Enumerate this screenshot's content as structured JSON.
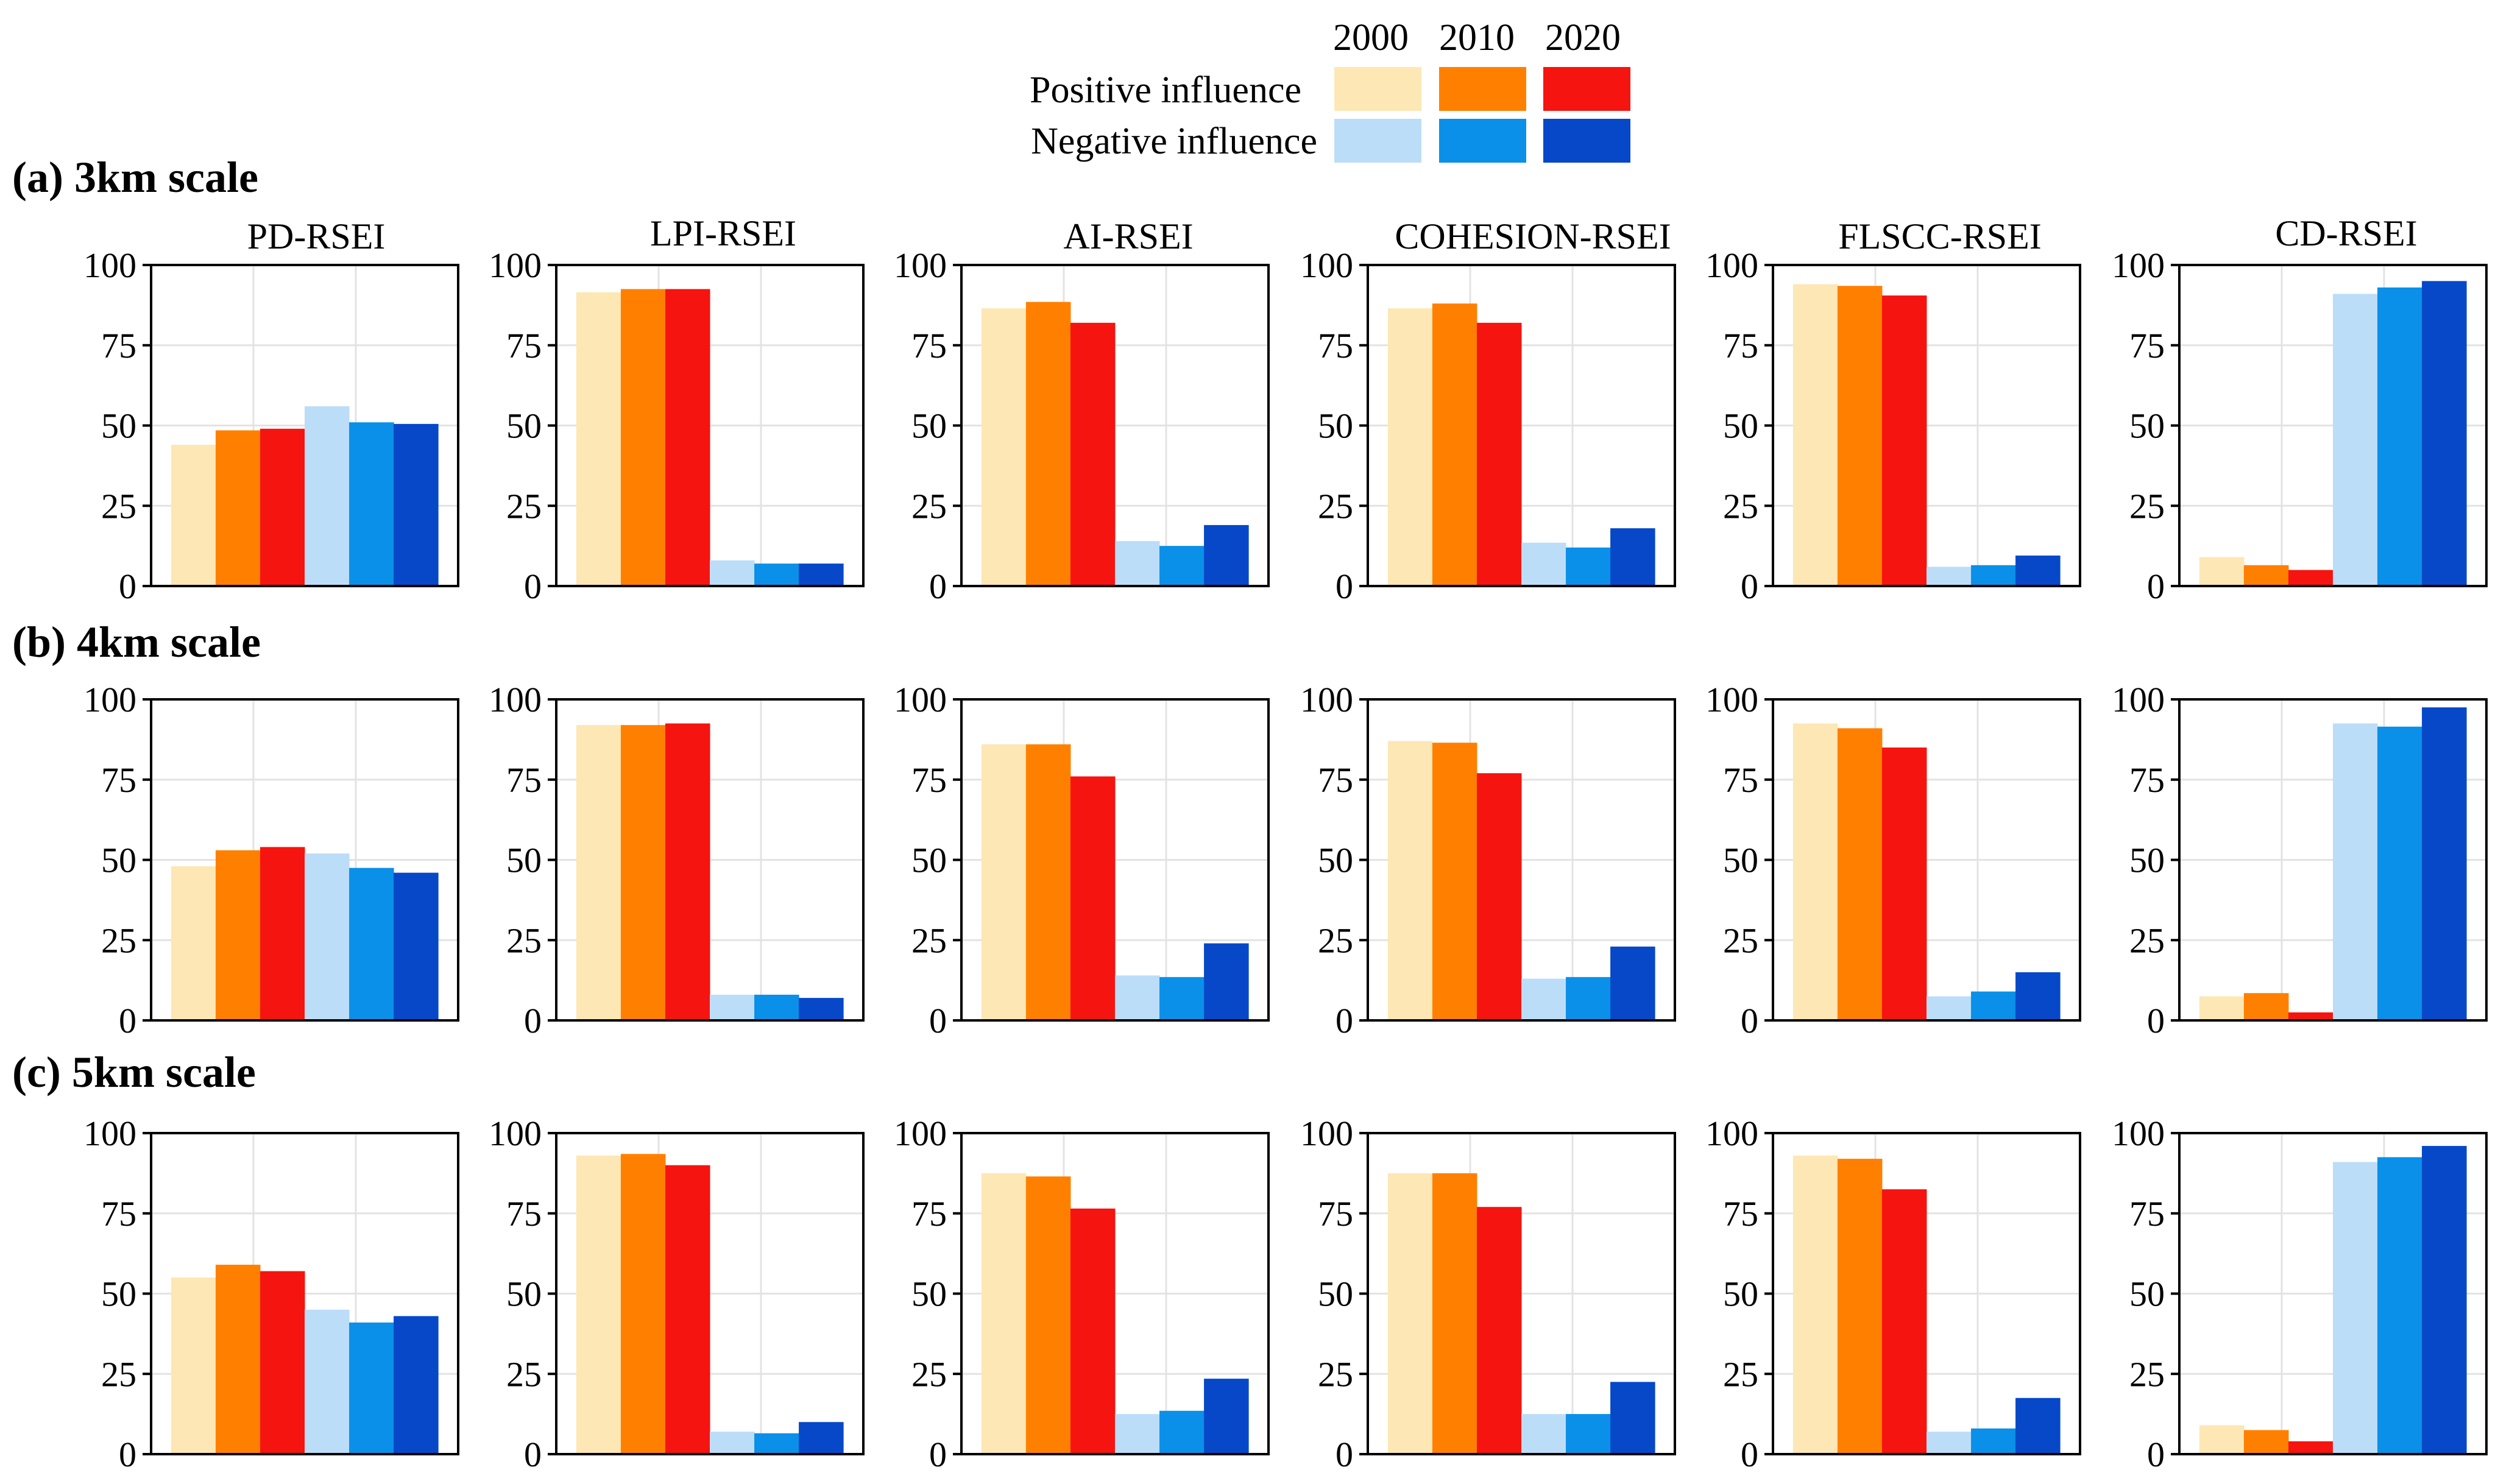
{
  "legend": {
    "years": [
      "2000",
      "2010",
      "2020"
    ],
    "rows": [
      {
        "label": "Positive influence",
        "colors": [
          "#FDE7B4",
          "#FF8000",
          "#F5140F"
        ]
      },
      {
        "label": "Negative influence",
        "colors": [
          "#BCDDF8",
          "#0A90E8",
          "#0648C8"
        ]
      }
    ]
  },
  "bar_colors": [
    "#FDE7B4",
    "#FF8000",
    "#F5140F",
    "#BCDDF8",
    "#0A90E8",
    "#0648C8"
  ],
  "axis": {
    "ticks": [
      "0",
      "25",
      "50",
      "75",
      "100"
    ]
  },
  "panel_titles": [
    "PD-RSEI",
    "LPI-RSEI",
    "AI-RSEI",
    "COHESION-RSEI",
    "FLSCC-RSEI",
    "CD-RSEI"
  ],
  "row_titles": [
    "(a) 3km scale",
    "(b) 4km scale",
    "(c) 5km scale"
  ],
  "chart_data": [
    {
      "type": "bar",
      "row": "(a) 3km scale",
      "title": "PD-RSEI",
      "ylim": [
        0,
        100
      ],
      "values": [
        44,
        48.5,
        49,
        56,
        51,
        50.5
      ]
    },
    {
      "type": "bar",
      "row": "(a) 3km scale",
      "title": "LPI-RSEI",
      "ylim": [
        0,
        100
      ],
      "values": [
        91.5,
        92.5,
        92.5,
        8,
        7,
        7
      ]
    },
    {
      "type": "bar",
      "row": "(a) 3km scale",
      "title": "AI-RSEI",
      "ylim": [
        0,
        100
      ],
      "values": [
        86.5,
        88.5,
        82,
        14,
        12.5,
        19
      ]
    },
    {
      "type": "bar",
      "row": "(a) 3km scale",
      "title": "COHESION-RSEI",
      "ylim": [
        0,
        100
      ],
      "values": [
        86.5,
        88,
        82,
        13.5,
        12,
        18
      ]
    },
    {
      "type": "bar",
      "row": "(a) 3km scale",
      "title": "FLSCC-RSEI",
      "ylim": [
        0,
        100
      ],
      "values": [
        94,
        93.5,
        90.5,
        6,
        6.5,
        9.5
      ]
    },
    {
      "type": "bar",
      "row": "(a) 3km scale",
      "title": "CD-RSEI",
      "ylim": [
        0,
        100
      ],
      "values": [
        9,
        6.5,
        5,
        91,
        93,
        95
      ]
    },
    {
      "type": "bar",
      "row": "(b) 4km scale",
      "title": "PD-RSEI",
      "ylim": [
        0,
        100
      ],
      "values": [
        48,
        53,
        54,
        52,
        47.5,
        46
      ]
    },
    {
      "type": "bar",
      "row": "(b) 4km scale",
      "title": "LPI-RSEI",
      "ylim": [
        0,
        100
      ],
      "values": [
        92,
        92,
        92.5,
        8,
        8,
        7
      ]
    },
    {
      "type": "bar",
      "row": "(b) 4km scale",
      "title": "AI-RSEI",
      "ylim": [
        0,
        100
      ],
      "values": [
        86,
        86,
        76,
        14,
        13.5,
        24
      ]
    },
    {
      "type": "bar",
      "row": "(b) 4km scale",
      "title": "COHESION-RSEI",
      "ylim": [
        0,
        100
      ],
      "values": [
        87,
        86.5,
        77,
        13,
        13.5,
        23
      ]
    },
    {
      "type": "bar",
      "row": "(b) 4km scale",
      "title": "FLSCC-RSEI",
      "ylim": [
        0,
        100
      ],
      "values": [
        92.5,
        91,
        85,
        7.5,
        9,
        15
      ]
    },
    {
      "type": "bar",
      "row": "(b) 4km scale",
      "title": "CD-RSEI",
      "ylim": [
        0,
        100
      ],
      "values": [
        7.5,
        8.5,
        2.5,
        92.5,
        91.5,
        97.5
      ]
    },
    {
      "type": "bar",
      "row": "(c) 5km scale",
      "title": "PD-RSEI",
      "ylim": [
        0,
        100
      ],
      "values": [
        55,
        59,
        57,
        45,
        41,
        43
      ]
    },
    {
      "type": "bar",
      "row": "(c) 5km scale",
      "title": "LPI-RSEI",
      "ylim": [
        0,
        100
      ],
      "values": [
        93,
        93.5,
        90,
        7,
        6.5,
        10
      ]
    },
    {
      "type": "bar",
      "row": "(c) 5km scale",
      "title": "AI-RSEI",
      "ylim": [
        0,
        100
      ],
      "values": [
        87.5,
        86.5,
        76.5,
        12.5,
        13.5,
        23.5
      ]
    },
    {
      "type": "bar",
      "row": "(c) 5km scale",
      "title": "COHESION-RSEI",
      "ylim": [
        0,
        100
      ],
      "values": [
        87.5,
        87.5,
        77,
        12.5,
        12.5,
        22.5
      ]
    },
    {
      "type": "bar",
      "row": "(c) 5km scale",
      "title": "FLSCC-RSEI",
      "ylim": [
        0,
        100
      ],
      "values": [
        93,
        92,
        82.5,
        7,
        8,
        17.5
      ]
    },
    {
      "type": "bar",
      "row": "(c) 5km scale",
      "title": "CD-RSEI",
      "ylim": [
        0,
        100
      ],
      "values": [
        9,
        7.5,
        4,
        91,
        92.5,
        96
      ]
    }
  ]
}
